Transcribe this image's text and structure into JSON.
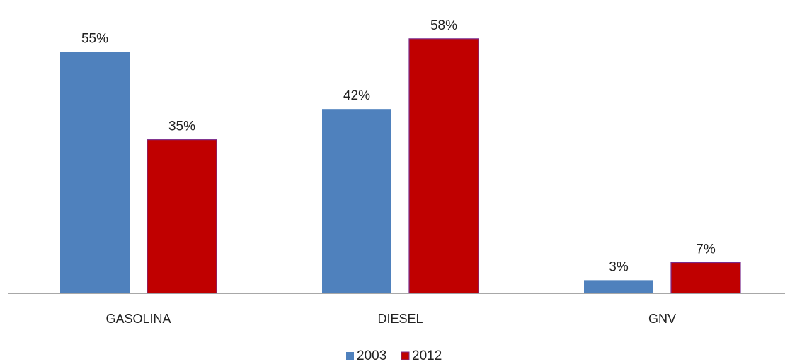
{
  "chart_data": {
    "type": "bar",
    "categories": [
      "GASOLINA",
      "DIESEL",
      "GNV"
    ],
    "series": [
      {
        "name": "2003",
        "values": [
          55,
          42,
          3
        ],
        "labels": [
          "55%",
          "42%",
          "3%"
        ],
        "color": "#4F81BD"
      },
      {
        "name": "2012",
        "values": [
          35,
          58,
          7
        ],
        "labels": [
          "35%",
          "58%",
          "7%"
        ],
        "color": "#C00000"
      }
    ],
    "value_unit": "%",
    "ylim": [
      0,
      62
    ],
    "grid": false,
    "legend_position": "bottom"
  }
}
